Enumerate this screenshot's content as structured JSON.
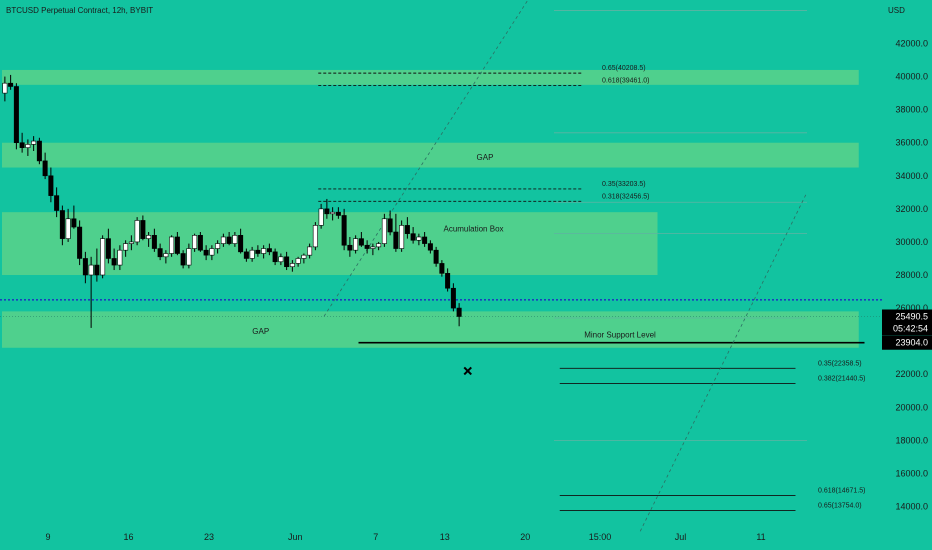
{
  "header": {
    "title": "BTCUSD Perpetual Contract, 12h, BYBIT",
    "currency": "USD"
  },
  "colors": {
    "background": "#12c3a0",
    "zone": "#4fd08d",
    "candle_up": "#ffffff",
    "candle_down": "#000000",
    "dotted_line": "#1b3fbf",
    "text": "#1a1a1a",
    "fib_ghost": "#5fb3a2"
  },
  "chart_data": {
    "type": "candlestick",
    "symbol": "BTCUSD Perpetual Contract",
    "interval": "12h",
    "exchange": "BYBIT",
    "y_axis": {
      "ticks": [
        14000.0,
        16000.0,
        18000.0,
        20000.0,
        22000.0,
        24000.0,
        26000.0,
        28000.0,
        30000.0,
        32000.0,
        34000.0,
        36000.0,
        38000.0,
        40000.0,
        42000.0
      ],
      "tick_labels": [
        "14000.0",
        "16000.0",
        "18000.0",
        "20000.0",
        "22000.0",
        "24000.0",
        "26000.0",
        "28000.0",
        "30000.0",
        "32000.0",
        "34000.0",
        "36000.0",
        "38000.0",
        "40000.0",
        "42000.0"
      ],
      "range": [
        13000,
        46000
      ]
    },
    "x_axis": {
      "tick_labels": [
        "9",
        "16",
        "23",
        "Jun",
        "7",
        "13",
        "20",
        "15:00",
        "Jul",
        "11"
      ],
      "bar_index": [
        8,
        22,
        36,
        51,
        65,
        77,
        91,
        104,
        118,
        132
      ]
    },
    "price_labels": [
      {
        "value": 25490.5,
        "label": "25490.5"
      },
      {
        "value": 23904.0,
        "label": "23904.0"
      }
    ],
    "countdown": "05:42:54",
    "zones": [
      {
        "name": "upper-gap-top",
        "low": 39500,
        "high": 40400,
        "x_from": 0,
        "x_to": 149
      },
      {
        "name": "gap-upper",
        "low": 34500,
        "high": 36000,
        "x_from": 0,
        "x_to": 149
      },
      {
        "name": "accumulation-box",
        "low": 28000,
        "high": 31800,
        "x_from": 0,
        "x_to": 114
      },
      {
        "name": "gap-lower",
        "low": 23600,
        "high": 25800,
        "x_from": 0,
        "x_to": 149
      }
    ],
    "zone_labels": [
      {
        "text": "GAP",
        "value": 35150,
        "bar": 84
      },
      {
        "text": "Acumulation Box",
        "value": 30800,
        "bar": 82
      },
      {
        "text": "GAP",
        "value": 24600,
        "bar": 45
      }
    ],
    "levels": [
      {
        "label": "0.65(40208.5)",
        "value": 40208.5,
        "from_bar": 55,
        "to_bar": 101,
        "style": "dashed"
      },
      {
        "label": "0.618(39461.0)",
        "value": 39461.0,
        "from_bar": 55,
        "to_bar": 101,
        "style": "dashed"
      },
      {
        "label": "0.35(33203.5)",
        "value": 33203.5,
        "from_bar": 55,
        "to_bar": 101,
        "style": "dashed"
      },
      {
        "label": "0.318(32456.5)",
        "value": 32456.5,
        "from_bar": 55,
        "to_bar": 101,
        "style": "dashed"
      },
      {
        "label": "0.35(22358.5)",
        "value": 22358.5,
        "from_bar": 97,
        "to_bar": 138,
        "style": "solid"
      },
      {
        "label": "0.382(21440.5)",
        "value": 21440.5,
        "from_bar": 97,
        "to_bar": 138,
        "style": "solid"
      },
      {
        "label": "0.618(14671.5)",
        "value": 14671.5,
        "from_bar": 97,
        "to_bar": 138,
        "style": "solid"
      },
      {
        "label": "0.65(13754.0)",
        "value": 13754.0,
        "from_bar": 97,
        "to_bar": 138,
        "style": "solid"
      }
    ],
    "support_line": {
      "label": "Minor Support Level",
      "value": 23904.0,
      "from_bar": 62,
      "to_bar": 150
    },
    "dotted_line": {
      "value": 26500
    },
    "trend_lines": [
      {
        "from": [
          56,
          25500
        ],
        "to": [
          94,
          46000
        ]
      },
      {
        "from": [
          111,
          12500
        ],
        "to": [
          140,
          33000
        ]
      }
    ],
    "marker": {
      "type": "x",
      "bar": 81,
      "value": 22200
    },
    "candles": [
      {
        "o": 39000,
        "h": 40000,
        "l": 38500,
        "c": 39600
      },
      {
        "o": 39600,
        "h": 40100,
        "l": 39200,
        "c": 39400
      },
      {
        "o": 39400,
        "h": 39600,
        "l": 35600,
        "c": 36000
      },
      {
        "o": 36000,
        "h": 36600,
        "l": 35400,
        "c": 35700
      },
      {
        "o": 35700,
        "h": 36200,
        "l": 35200,
        "c": 35900
      },
      {
        "o": 35900,
        "h": 36400,
        "l": 35500,
        "c": 36100
      },
      {
        "o": 36100,
        "h": 36300,
        "l": 34700,
        "c": 34900
      },
      {
        "o": 34900,
        "h": 35400,
        "l": 33800,
        "c": 34000
      },
      {
        "o": 34000,
        "h": 34500,
        "l": 32400,
        "c": 32800
      },
      {
        "o": 32800,
        "h": 33300,
        "l": 31500,
        "c": 31900
      },
      {
        "o": 31900,
        "h": 32200,
        "l": 29800,
        "c": 30200
      },
      {
        "o": 30200,
        "h": 32000,
        "l": 30000,
        "c": 31400
      },
      {
        "o": 31400,
        "h": 32200,
        "l": 30800,
        "c": 30900
      },
      {
        "o": 30900,
        "h": 31300,
        "l": 28600,
        "c": 29000
      },
      {
        "o": 29000,
        "h": 29400,
        "l": 27500,
        "c": 28000
      },
      {
        "o": 28000,
        "h": 29100,
        "l": 24800,
        "c": 28600
      },
      {
        "o": 28600,
        "h": 29600,
        "l": 27600,
        "c": 28000
      },
      {
        "o": 28000,
        "h": 30400,
        "l": 27800,
        "c": 30200
      },
      {
        "o": 30200,
        "h": 30800,
        "l": 28700,
        "c": 29000
      },
      {
        "o": 29000,
        "h": 29600,
        "l": 28300,
        "c": 28600
      },
      {
        "o": 28600,
        "h": 29800,
        "l": 28300,
        "c": 29500
      },
      {
        "o": 29500,
        "h": 30100,
        "l": 29100,
        "c": 29900
      },
      {
        "o": 29900,
        "h": 30400,
        "l": 29500,
        "c": 30000
      },
      {
        "o": 30000,
        "h": 31500,
        "l": 29800,
        "c": 31300
      },
      {
        "o": 31300,
        "h": 31600,
        "l": 30100,
        "c": 30200
      },
      {
        "o": 30200,
        "h": 30600,
        "l": 29700,
        "c": 30400
      },
      {
        "o": 30400,
        "h": 30800,
        "l": 29400,
        "c": 29600
      },
      {
        "o": 29600,
        "h": 29900,
        "l": 28900,
        "c": 29100
      },
      {
        "o": 29100,
        "h": 29500,
        "l": 28700,
        "c": 29300
      },
      {
        "o": 29300,
        "h": 30400,
        "l": 29100,
        "c": 30300
      },
      {
        "o": 30300,
        "h": 30600,
        "l": 29200,
        "c": 29300
      },
      {
        "o": 29300,
        "h": 29500,
        "l": 28400,
        "c": 28600
      },
      {
        "o": 28600,
        "h": 29900,
        "l": 28400,
        "c": 29600
      },
      {
        "o": 29600,
        "h": 30500,
        "l": 29400,
        "c": 30400
      },
      {
        "o": 30400,
        "h": 30600,
        "l": 29400,
        "c": 29500
      },
      {
        "o": 29500,
        "h": 29800,
        "l": 28900,
        "c": 29200
      },
      {
        "o": 29200,
        "h": 29800,
        "l": 28900,
        "c": 29600
      },
      {
        "o": 29600,
        "h": 30100,
        "l": 29300,
        "c": 29900
      },
      {
        "o": 29900,
        "h": 30500,
        "l": 29700,
        "c": 30300
      },
      {
        "o": 30300,
        "h": 30600,
        "l": 29800,
        "c": 29900
      },
      {
        "o": 29900,
        "h": 30600,
        "l": 29700,
        "c": 30400
      },
      {
        "o": 30400,
        "h": 30800,
        "l": 29300,
        "c": 29400
      },
      {
        "o": 29400,
        "h": 29600,
        "l": 28800,
        "c": 29000
      },
      {
        "o": 29000,
        "h": 29700,
        "l": 28800,
        "c": 29500
      },
      {
        "o": 29500,
        "h": 29800,
        "l": 29100,
        "c": 29300
      },
      {
        "o": 29300,
        "h": 29800,
        "l": 29000,
        "c": 29600
      },
      {
        "o": 29600,
        "h": 29900,
        "l": 29200,
        "c": 29400
      },
      {
        "o": 29400,
        "h": 29600,
        "l": 28600,
        "c": 28800
      },
      {
        "o": 28800,
        "h": 29300,
        "l": 28600,
        "c": 29100
      },
      {
        "o": 29100,
        "h": 29400,
        "l": 28300,
        "c": 28500
      },
      {
        "o": 28500,
        "h": 28900,
        "l": 28200,
        "c": 28700
      },
      {
        "o": 28700,
        "h": 29100,
        "l": 28500,
        "c": 29000
      },
      {
        "o": 29000,
        "h": 29300,
        "l": 28700,
        "c": 29200
      },
      {
        "o": 29200,
        "h": 29900,
        "l": 29000,
        "c": 29700
      },
      {
        "o": 29700,
        "h": 31200,
        "l": 29500,
        "c": 31000
      },
      {
        "o": 31000,
        "h": 32300,
        "l": 30800,
        "c": 32000
      },
      {
        "o": 32000,
        "h": 32600,
        "l": 31400,
        "c": 31700
      },
      {
        "o": 31700,
        "h": 32100,
        "l": 31300,
        "c": 31800
      },
      {
        "o": 31800,
        "h": 32100,
        "l": 31400,
        "c": 31600
      },
      {
        "o": 31600,
        "h": 32000,
        "l": 29500,
        "c": 29800
      },
      {
        "o": 29800,
        "h": 30300,
        "l": 29100,
        "c": 29500
      },
      {
        "o": 29500,
        "h": 30400,
        "l": 29300,
        "c": 30200
      },
      {
        "o": 30200,
        "h": 30600,
        "l": 29700,
        "c": 29800
      },
      {
        "o": 29800,
        "h": 30100,
        "l": 29300,
        "c": 29600
      },
      {
        "o": 29600,
        "h": 29900,
        "l": 29200,
        "c": 29700
      },
      {
        "o": 29700,
        "h": 30000,
        "l": 29500,
        "c": 29900
      },
      {
        "o": 29900,
        "h": 31700,
        "l": 29700,
        "c": 31400
      },
      {
        "o": 31400,
        "h": 31900,
        "l": 30400,
        "c": 30600
      },
      {
        "o": 30600,
        "h": 31700,
        "l": 29400,
        "c": 29600
      },
      {
        "o": 29600,
        "h": 31300,
        "l": 29400,
        "c": 31000
      },
      {
        "o": 31000,
        "h": 31500,
        "l": 30200,
        "c": 30500
      },
      {
        "o": 30500,
        "h": 30900,
        "l": 29900,
        "c": 30100
      },
      {
        "o": 30100,
        "h": 30500,
        "l": 29800,
        "c": 30300
      },
      {
        "o": 30300,
        "h": 30600,
        "l": 29700,
        "c": 29900
      },
      {
        "o": 29900,
        "h": 30100,
        "l": 29300,
        "c": 29500
      },
      {
        "o": 29500,
        "h": 29700,
        "l": 28500,
        "c": 28700
      },
      {
        "o": 28700,
        "h": 28900,
        "l": 27900,
        "c": 28100
      },
      {
        "o": 28100,
        "h": 28400,
        "l": 27000,
        "c": 27200
      },
      {
        "o": 27200,
        "h": 27500,
        "l": 25800,
        "c": 26000
      },
      {
        "o": 26000,
        "h": 26300,
        "l": 24900,
        "c": 25490.5
      }
    ]
  }
}
